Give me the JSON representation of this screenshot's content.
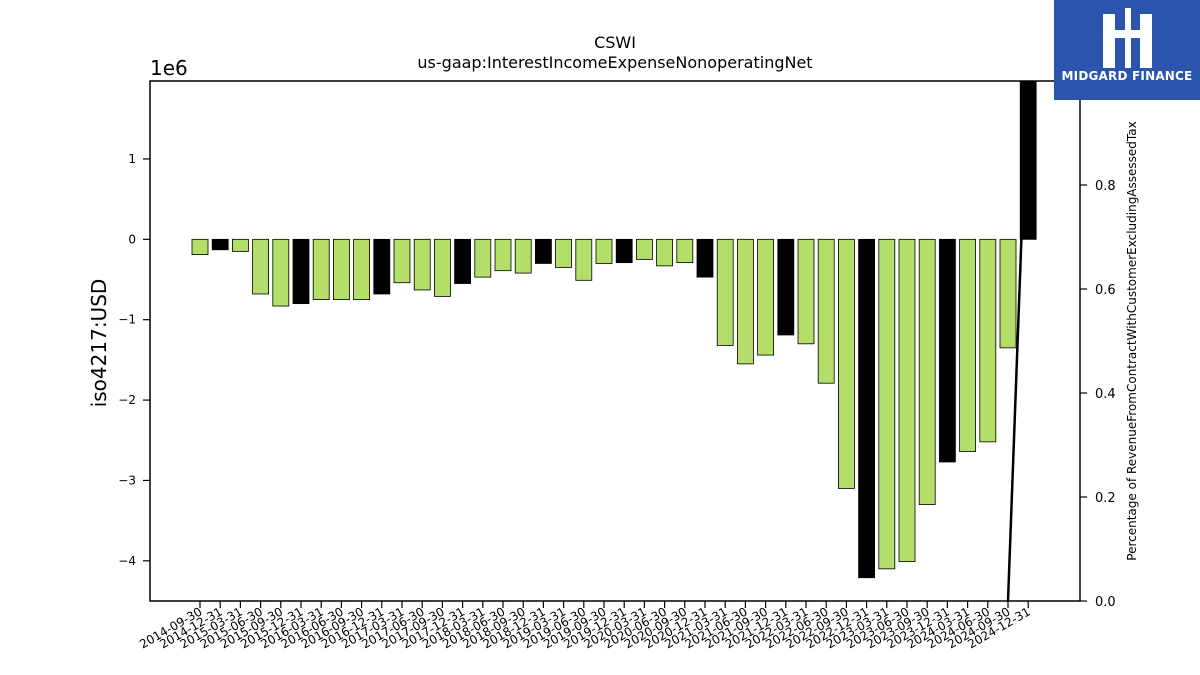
{
  "logo": {
    "text": "MIDGARD FINANCE",
    "icon": "midgard-logo-icon",
    "color": "#2b55ad"
  },
  "chart_data": {
    "type": "bar",
    "title": "CSWI",
    "subtitle": "us-gaap:InterestIncomeExpenseNonoperatingNet",
    "ylabel": "iso4217:USD",
    "y2label": "Percentage of RevenueFromContractWithCustomerExcludingAssessedTax",
    "offset_text": "1e6",
    "ylim": [
      -4.5,
      1.97
    ],
    "y2lim": [
      0.0,
      1.0
    ],
    "yticks": [
      -4,
      -3,
      -2,
      -1,
      0,
      1
    ],
    "yticklabels": [
      "−4",
      "−3",
      "−2",
      "−1",
      "0",
      "1"
    ],
    "y2ticks": [
      0.0,
      0.2,
      0.4,
      0.6,
      0.8
    ],
    "y2ticklabels": [
      "0.0",
      "0.2",
      "0.4",
      "0.6",
      "0.8"
    ],
    "colors": {
      "quarter": "#b3de69",
      "year_end": "#000000",
      "line": "#000000"
    },
    "categories": [
      "2014-09-30",
      "2014-12-31",
      "2015-03-31",
      "2015-06-30",
      "2015-09-30",
      "2015-12-31",
      "2016-03-31",
      "2016-06-30",
      "2016-09-30",
      "2016-12-31",
      "2017-03-31",
      "2017-06-30",
      "2017-09-30",
      "2017-12-31",
      "2018-03-31",
      "2018-06-30",
      "2018-09-30",
      "2018-12-31",
      "2019-03-31",
      "2019-06-30",
      "2019-09-30",
      "2019-12-31",
      "2020-03-31",
      "2020-06-30",
      "2020-09-30",
      "2020-12-31",
      "2021-03-31",
      "2021-06-30",
      "2021-09-30",
      "2021-12-31",
      "2022-03-31",
      "2022-06-30",
      "2022-09-30",
      "2022-12-31",
      "2023-03-31",
      "2023-06-30",
      "2023-09-30",
      "2023-12-31",
      "2024-03-31",
      "2024-06-30",
      "2024-09-30",
      "2024-12-31"
    ],
    "values": [
      -0.19,
      -0.13,
      -0.15,
      -0.68,
      -0.83,
      -0.8,
      -0.75,
      -0.75,
      -0.75,
      -0.68,
      -0.54,
      -0.63,
      -0.71,
      -0.55,
      -0.47,
      -0.39,
      -0.42,
      -0.3,
      -0.35,
      -0.51,
      -0.3,
      -0.29,
      -0.25,
      -0.33,
      -0.29,
      -0.47,
      -1.32,
      -1.55,
      -1.44,
      -1.19,
      -1.3,
      -1.79,
      -3.1,
      -4.21,
      -4.1,
      -4.01,
      -3.3,
      -2.77,
      -2.64,
      -2.52,
      -1.35,
      1.97
    ],
    "is_year_end": [
      false,
      true,
      false,
      false,
      false,
      true,
      false,
      false,
      false,
      true,
      false,
      false,
      false,
      true,
      false,
      false,
      false,
      true,
      false,
      false,
      false,
      true,
      false,
      false,
      false,
      true,
      false,
      false,
      false,
      true,
      false,
      false,
      false,
      true,
      false,
      false,
      false,
      true,
      false,
      false,
      false,
      true
    ],
    "line": {
      "x": [
        "2024-09-30",
        "2024-12-31"
      ],
      "values": [
        0.0,
        1.05
      ]
    }
  }
}
